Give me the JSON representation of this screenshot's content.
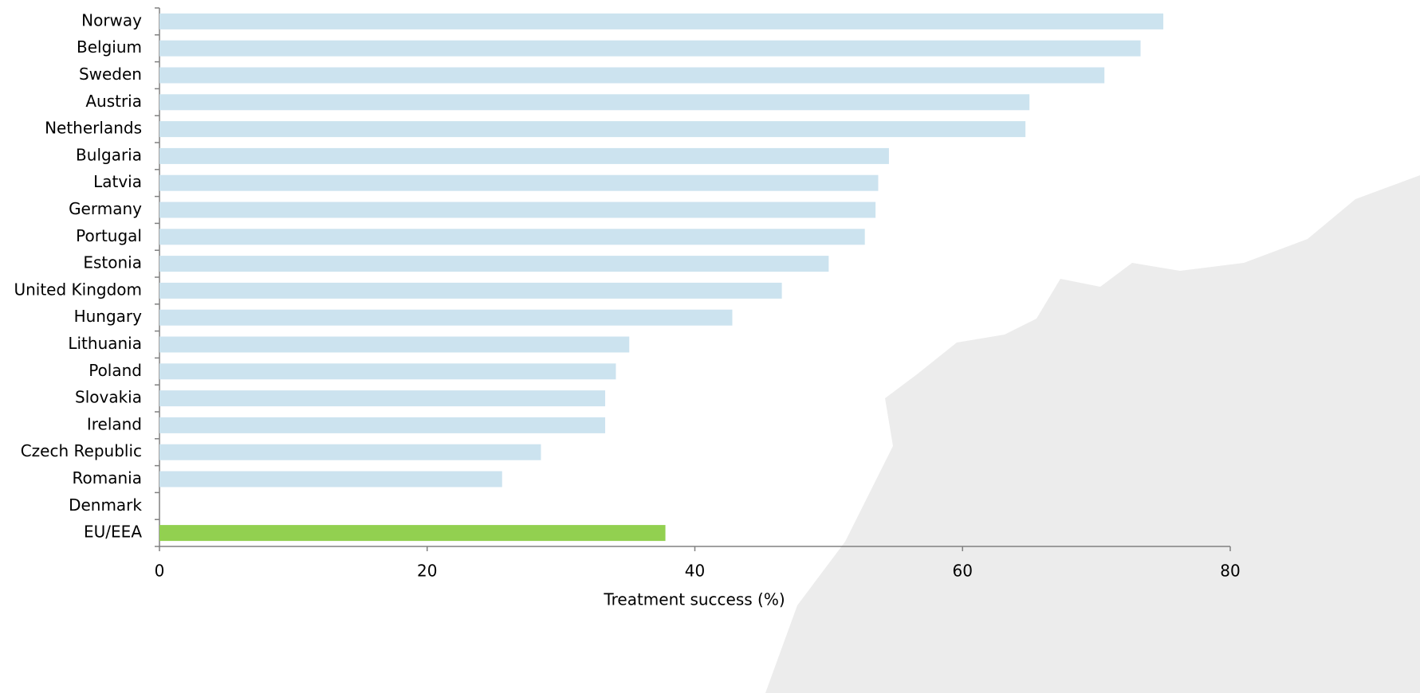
{
  "chart_data": {
    "type": "barh",
    "categories": [
      "Norway",
      "Belgium",
      "Sweden",
      "Austria",
      "Netherlands",
      "Bulgaria",
      "Latvia",
      "Germany",
      "Portugal",
      "Estonia",
      "United Kingdom",
      "Hungary",
      "Lithuania",
      "Poland",
      "Slovakia",
      "Ireland",
      "Czech Republic",
      "Romania",
      "Denmark",
      "EU/EEA"
    ],
    "values": [
      75.0,
      73.3,
      70.6,
      65.0,
      64.7,
      54.5,
      53.7,
      53.5,
      52.7,
      50.0,
      46.5,
      42.8,
      35.1,
      34.1,
      33.3,
      33.3,
      28.5,
      25.6,
      null,
      37.8
    ],
    "colors": [
      "#cce3ef",
      "#cce3ef",
      "#cce3ef",
      "#cce3ef",
      "#cce3ef",
      "#cce3ef",
      "#cce3ef",
      "#cce3ef",
      "#cce3ef",
      "#cce3ef",
      "#cce3ef",
      "#cce3ef",
      "#cce3ef",
      "#cce3ef",
      "#cce3ef",
      "#cce3ef",
      "#cce3ef",
      "#cce3ef",
      "#cce3ef",
      "#92d050"
    ],
    "xlabel": "Treatment success (%)",
    "xlim": [
      0,
      80
    ],
    "xticks": [
      0,
      20,
      40,
      60,
      80
    ],
    "grid": false
  }
}
